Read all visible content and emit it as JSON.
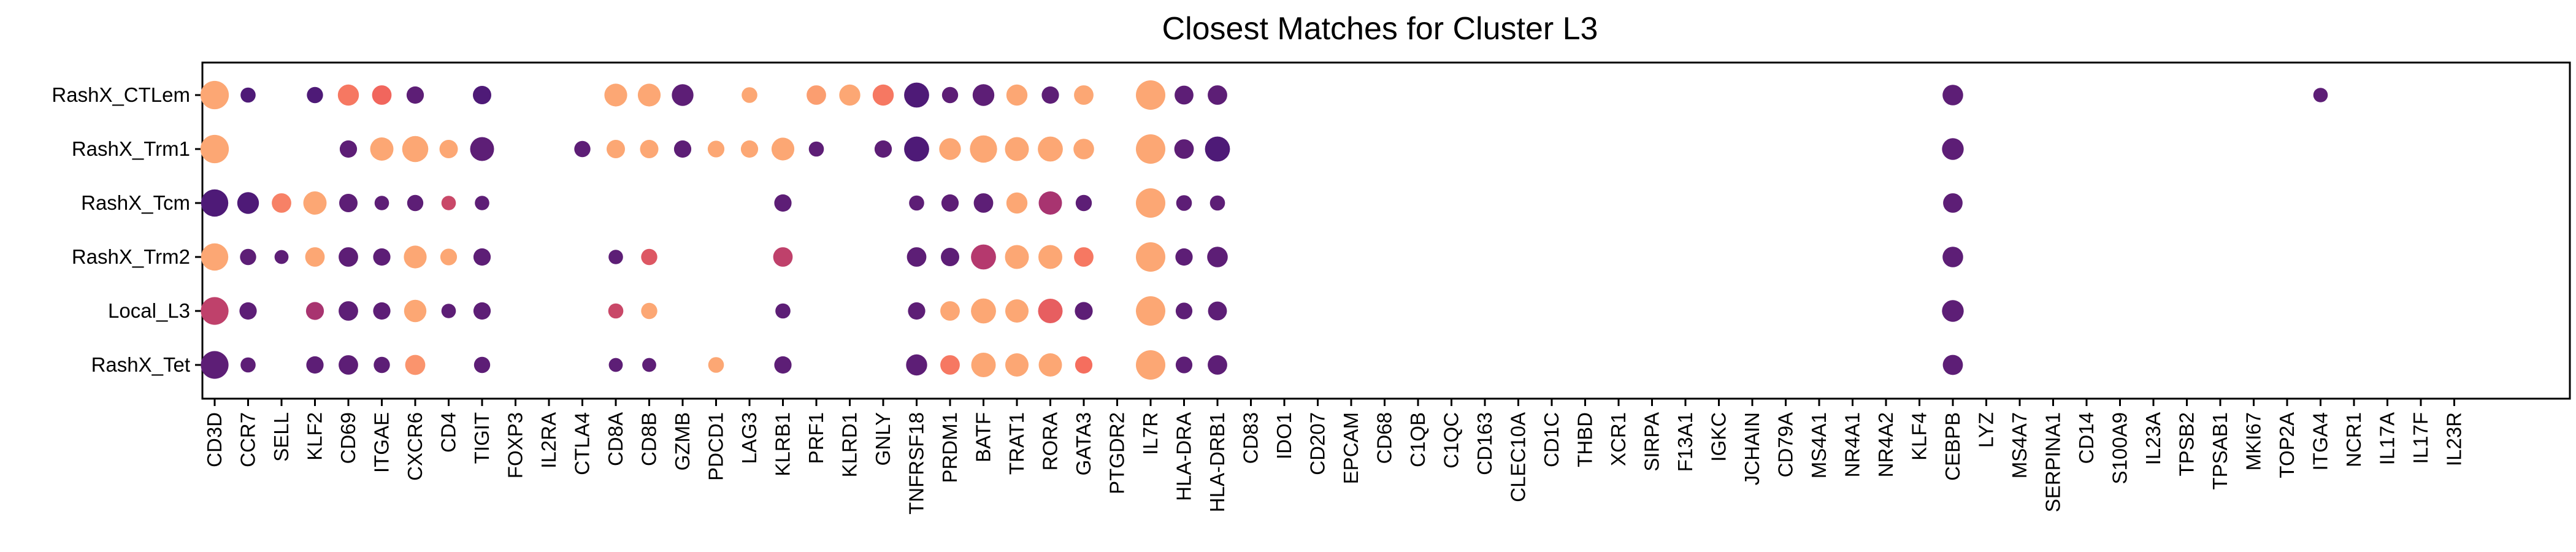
{
  "chart_data": {
    "type": "scatter",
    "title": "Closest Matches for Cluster L3",
    "xlabel": "",
    "ylabel": "",
    "grid": false,
    "legend": "none",
    "rows": [
      "RashX_CTLem",
      "RashX_Trm1",
      "RashX_Tcm",
      "RashX_Trm2",
      "Local_L3",
      "RashX_Tet"
    ],
    "genes": [
      "CD3D",
      "CCR7",
      "SELL",
      "KLF2",
      "CD69",
      "ITGAE",
      "CXCR6",
      "CD4",
      "TIGIT",
      "FOXP3",
      "IL2RA",
      "CTLA4",
      "CD8A",
      "CD8B",
      "GZMB",
      "PDCD1",
      "LAG3",
      "KLRB1",
      "PRF1",
      "KLRD1",
      "GNLY",
      "TNFRSF18",
      "PRDM1",
      "BATF",
      "TRAT1",
      "RORA",
      "GATA3",
      "PTGDR2",
      "IL7R",
      "HLA-DRA",
      "HLA-DRB1",
      "CD83",
      "IDO1",
      "CD207",
      "EPCAM",
      "CD68",
      "C1QB",
      "C1QC",
      "CD163",
      "CLEC10A",
      "CD1C",
      "THBD",
      "XCR1",
      "SIRPA",
      "F13A1",
      "IGKC",
      "JCHAIN",
      "CD79A",
      "MS4A1",
      "NR4A1",
      "NR4A2",
      "KLF4",
      "CEBPB",
      "LYZ",
      "MS4A7",
      "SERPINA1",
      "CD14",
      "S100A9",
      "IL23A",
      "TPSB2",
      "TPSAB1",
      "MKI67",
      "TOP2A",
      "ITGA4",
      "NCR1",
      "IL17A",
      "IL17F",
      "IL23R"
    ],
    "color_scale": {
      "low": "#4e1a77",
      "mid": "#b2376f",
      "high": "#f4685c",
      "max": "#fca774"
    },
    "points": [
      {
        "row": 0,
        "gene": 0,
        "size": 0.95,
        "color": 1.0
      },
      {
        "row": 0,
        "gene": 1,
        "size": 0.35,
        "color": 0.0
      },
      {
        "row": 0,
        "gene": 3,
        "size": 0.4,
        "color": 0.0
      },
      {
        "row": 0,
        "gene": 4,
        "size": 0.62,
        "color": 0.75
      },
      {
        "row": 0,
        "gene": 5,
        "size": 0.55,
        "color": 0.65
      },
      {
        "row": 0,
        "gene": 6,
        "size": 0.45,
        "color": 0.05
      },
      {
        "row": 0,
        "gene": 8,
        "size": 0.5,
        "color": 0.0
      },
      {
        "row": 0,
        "gene": 12,
        "size": 0.7,
        "color": 1.0
      },
      {
        "row": 0,
        "gene": 13,
        "size": 0.7,
        "color": 1.0
      },
      {
        "row": 0,
        "gene": 14,
        "size": 0.65,
        "color": 0.05
      },
      {
        "row": 0,
        "gene": 16,
        "size": 0.38,
        "color": 1.0
      },
      {
        "row": 0,
        "gene": 18,
        "size": 0.55,
        "color": 0.95
      },
      {
        "row": 0,
        "gene": 19,
        "size": 0.62,
        "color": 1.0
      },
      {
        "row": 0,
        "gene": 20,
        "size": 0.62,
        "color": 0.75
      },
      {
        "row": 0,
        "gene": 21,
        "size": 0.8,
        "color": 0.0
      },
      {
        "row": 0,
        "gene": 22,
        "size": 0.4,
        "color": 0.05
      },
      {
        "row": 0,
        "gene": 23,
        "size": 0.65,
        "color": 0.05
      },
      {
        "row": 0,
        "gene": 24,
        "size": 0.62,
        "color": 1.0
      },
      {
        "row": 0,
        "gene": 25,
        "size": 0.45,
        "color": 0.05
      },
      {
        "row": 0,
        "gene": 26,
        "size": 0.55,
        "color": 1.0
      },
      {
        "row": 0,
        "gene": 28,
        "size": 1.0,
        "color": 1.0
      },
      {
        "row": 0,
        "gene": 29,
        "size": 0.52,
        "color": 0.05
      },
      {
        "row": 0,
        "gene": 30,
        "size": 0.55,
        "color": 0.05
      },
      {
        "row": 0,
        "gene": 52,
        "size": 0.6,
        "color": 0.05
      },
      {
        "row": 0,
        "gene": 63,
        "size": 0.32,
        "color": 0.05
      },
      {
        "row": 1,
        "gene": 0,
        "size": 0.95,
        "color": 1.0
      },
      {
        "row": 1,
        "gene": 4,
        "size": 0.45,
        "color": 0.05
      },
      {
        "row": 1,
        "gene": 5,
        "size": 0.72,
        "color": 1.0
      },
      {
        "row": 1,
        "gene": 6,
        "size": 0.85,
        "color": 1.0
      },
      {
        "row": 1,
        "gene": 7,
        "size": 0.5,
        "color": 1.0
      },
      {
        "row": 1,
        "gene": 8,
        "size": 0.75,
        "color": 0.05
      },
      {
        "row": 1,
        "gene": 11,
        "size": 0.4,
        "color": 0.05
      },
      {
        "row": 1,
        "gene": 12,
        "size": 0.5,
        "color": 1.0
      },
      {
        "row": 1,
        "gene": 13,
        "size": 0.5,
        "color": 1.0
      },
      {
        "row": 1,
        "gene": 14,
        "size": 0.45,
        "color": 0.05
      },
      {
        "row": 1,
        "gene": 15,
        "size": 0.42,
        "color": 1.0
      },
      {
        "row": 1,
        "gene": 16,
        "size": 0.45,
        "color": 1.0
      },
      {
        "row": 1,
        "gene": 17,
        "size": 0.7,
        "color": 1.0
      },
      {
        "row": 1,
        "gene": 18,
        "size": 0.35,
        "color": 0.05
      },
      {
        "row": 1,
        "gene": 20,
        "size": 0.45,
        "color": 0.05
      },
      {
        "row": 1,
        "gene": 21,
        "size": 0.8,
        "color": 0.0
      },
      {
        "row": 1,
        "gene": 22,
        "size": 0.65,
        "color": 1.0
      },
      {
        "row": 1,
        "gene": 23,
        "size": 0.9,
        "color": 1.0
      },
      {
        "row": 1,
        "gene": 24,
        "size": 0.75,
        "color": 1.0
      },
      {
        "row": 1,
        "gene": 25,
        "size": 0.8,
        "color": 1.0
      },
      {
        "row": 1,
        "gene": 26,
        "size": 0.6,
        "color": 1.0
      },
      {
        "row": 1,
        "gene": 28,
        "size": 1.0,
        "color": 1.0
      },
      {
        "row": 1,
        "gene": 29,
        "size": 0.55,
        "color": 0.05
      },
      {
        "row": 1,
        "gene": 30,
        "size": 0.8,
        "color": 0.0
      },
      {
        "row": 1,
        "gene": 52,
        "size": 0.65,
        "color": 0.05
      },
      {
        "row": 2,
        "gene": 0,
        "size": 0.9,
        "color": 0.0
      },
      {
        "row": 2,
        "gene": 1,
        "size": 0.65,
        "color": 0.0
      },
      {
        "row": 2,
        "gene": 2,
        "size": 0.55,
        "color": 0.8
      },
      {
        "row": 2,
        "gene": 3,
        "size": 0.72,
        "color": 1.0
      },
      {
        "row": 2,
        "gene": 4,
        "size": 0.5,
        "color": 0.05
      },
      {
        "row": 2,
        "gene": 5,
        "size": 0.32,
        "color": 0.05
      },
      {
        "row": 2,
        "gene": 6,
        "size": 0.4,
        "color": 0.05
      },
      {
        "row": 2,
        "gene": 7,
        "size": 0.32,
        "color": 0.45
      },
      {
        "row": 2,
        "gene": 8,
        "size": 0.32,
        "color": 0.05
      },
      {
        "row": 2,
        "gene": 17,
        "size": 0.45,
        "color": 0.05
      },
      {
        "row": 2,
        "gene": 21,
        "size": 0.35,
        "color": 0.05
      },
      {
        "row": 2,
        "gene": 22,
        "size": 0.45,
        "color": 0.05
      },
      {
        "row": 2,
        "gene": 23,
        "size": 0.55,
        "color": 0.05
      },
      {
        "row": 2,
        "gene": 24,
        "size": 0.62,
        "color": 1.0
      },
      {
        "row": 2,
        "gene": 25,
        "size": 0.72,
        "color": 0.3
      },
      {
        "row": 2,
        "gene": 26,
        "size": 0.4,
        "color": 0.05
      },
      {
        "row": 2,
        "gene": 28,
        "size": 1.0,
        "color": 1.0
      },
      {
        "row": 2,
        "gene": 29,
        "size": 0.38,
        "color": 0.05
      },
      {
        "row": 2,
        "gene": 30,
        "size": 0.35,
        "color": 0.05
      },
      {
        "row": 2,
        "gene": 52,
        "size": 0.55,
        "color": 0.05
      },
      {
        "row": 3,
        "gene": 0,
        "size": 0.9,
        "color": 1.0
      },
      {
        "row": 3,
        "gene": 1,
        "size": 0.4,
        "color": 0.05
      },
      {
        "row": 3,
        "gene": 2,
        "size": 0.3,
        "color": 0.05
      },
      {
        "row": 3,
        "gene": 3,
        "size": 0.55,
        "color": 1.0
      },
      {
        "row": 3,
        "gene": 4,
        "size": 0.55,
        "color": 0.05
      },
      {
        "row": 3,
        "gene": 5,
        "size": 0.45,
        "color": 0.05
      },
      {
        "row": 3,
        "gene": 6,
        "size": 0.7,
        "color": 1.0
      },
      {
        "row": 3,
        "gene": 7,
        "size": 0.42,
        "color": 1.0
      },
      {
        "row": 3,
        "gene": 8,
        "size": 0.45,
        "color": 0.05
      },
      {
        "row": 3,
        "gene": 12,
        "size": 0.32,
        "color": 0.05
      },
      {
        "row": 3,
        "gene": 13,
        "size": 0.4,
        "color": 0.55
      },
      {
        "row": 3,
        "gene": 17,
        "size": 0.55,
        "color": 0.4
      },
      {
        "row": 3,
        "gene": 21,
        "size": 0.55,
        "color": 0.05
      },
      {
        "row": 3,
        "gene": 22,
        "size": 0.5,
        "color": 0.05
      },
      {
        "row": 3,
        "gene": 23,
        "size": 0.8,
        "color": 0.35
      },
      {
        "row": 3,
        "gene": 24,
        "size": 0.75,
        "color": 1.0
      },
      {
        "row": 3,
        "gene": 25,
        "size": 0.75,
        "color": 1.0
      },
      {
        "row": 3,
        "gene": 26,
        "size": 0.55,
        "color": 0.75
      },
      {
        "row": 3,
        "gene": 28,
        "size": 1.0,
        "color": 1.0
      },
      {
        "row": 3,
        "gene": 29,
        "size": 0.45,
        "color": 0.05
      },
      {
        "row": 3,
        "gene": 30,
        "size": 0.6,
        "color": 0.05
      },
      {
        "row": 3,
        "gene": 52,
        "size": 0.6,
        "color": 0.05
      },
      {
        "row": 4,
        "gene": 0,
        "size": 0.92,
        "color": 0.4
      },
      {
        "row": 4,
        "gene": 1,
        "size": 0.45,
        "color": 0.05
      },
      {
        "row": 4,
        "gene": 3,
        "size": 0.48,
        "color": 0.3
      },
      {
        "row": 4,
        "gene": 4,
        "size": 0.55,
        "color": 0.05
      },
      {
        "row": 4,
        "gene": 5,
        "size": 0.45,
        "color": 0.05
      },
      {
        "row": 4,
        "gene": 6,
        "size": 0.68,
        "color": 1.0
      },
      {
        "row": 4,
        "gene": 7,
        "size": 0.32,
        "color": 0.05
      },
      {
        "row": 4,
        "gene": 8,
        "size": 0.45,
        "color": 0.05
      },
      {
        "row": 4,
        "gene": 12,
        "size": 0.35,
        "color": 0.45
      },
      {
        "row": 4,
        "gene": 13,
        "size": 0.4,
        "color": 1.0
      },
      {
        "row": 4,
        "gene": 17,
        "size": 0.35,
        "color": 0.05
      },
      {
        "row": 4,
        "gene": 21,
        "size": 0.45,
        "color": 0.05
      },
      {
        "row": 4,
        "gene": 22,
        "size": 0.55,
        "color": 1.0
      },
      {
        "row": 4,
        "gene": 23,
        "size": 0.8,
        "color": 1.0
      },
      {
        "row": 4,
        "gene": 24,
        "size": 0.72,
        "color": 1.0
      },
      {
        "row": 4,
        "gene": 25,
        "size": 0.78,
        "color": 0.6
      },
      {
        "row": 4,
        "gene": 26,
        "size": 0.48,
        "color": 0.05
      },
      {
        "row": 4,
        "gene": 28,
        "size": 1.0,
        "color": 1.0
      },
      {
        "row": 4,
        "gene": 29,
        "size": 0.42,
        "color": 0.05
      },
      {
        "row": 4,
        "gene": 30,
        "size": 0.52,
        "color": 0.05
      },
      {
        "row": 4,
        "gene": 52,
        "size": 0.65,
        "color": 0.05
      },
      {
        "row": 5,
        "gene": 0,
        "size": 0.92,
        "color": 0.05
      },
      {
        "row": 5,
        "gene": 1,
        "size": 0.35,
        "color": 0.05
      },
      {
        "row": 5,
        "gene": 3,
        "size": 0.45,
        "color": 0.05
      },
      {
        "row": 5,
        "gene": 4,
        "size": 0.55,
        "color": 0.05
      },
      {
        "row": 5,
        "gene": 5,
        "size": 0.4,
        "color": 0.05
      },
      {
        "row": 5,
        "gene": 6,
        "size": 0.58,
        "color": 0.9
      },
      {
        "row": 5,
        "gene": 8,
        "size": 0.4,
        "color": 0.05
      },
      {
        "row": 5,
        "gene": 12,
        "size": 0.3,
        "color": 0.05
      },
      {
        "row": 5,
        "gene": 13,
        "size": 0.3,
        "color": 0.05
      },
      {
        "row": 5,
        "gene": 15,
        "size": 0.38,
        "color": 1.0
      },
      {
        "row": 5,
        "gene": 17,
        "size": 0.45,
        "color": 0.05
      },
      {
        "row": 5,
        "gene": 21,
        "size": 0.62,
        "color": 0.05
      },
      {
        "row": 5,
        "gene": 22,
        "size": 0.55,
        "color": 0.75
      },
      {
        "row": 5,
        "gene": 23,
        "size": 0.78,
        "color": 1.0
      },
      {
        "row": 5,
        "gene": 24,
        "size": 0.72,
        "color": 1.0
      },
      {
        "row": 5,
        "gene": 25,
        "size": 0.72,
        "color": 1.0
      },
      {
        "row": 5,
        "gene": 26,
        "size": 0.45,
        "color": 0.7
      },
      {
        "row": 5,
        "gene": 28,
        "size": 1.0,
        "color": 1.0
      },
      {
        "row": 5,
        "gene": 29,
        "size": 0.42,
        "color": 0.05
      },
      {
        "row": 5,
        "gene": 30,
        "size": 0.55,
        "color": 0.05
      },
      {
        "row": 5,
        "gene": 52,
        "size": 0.58,
        "color": 0.05
      }
    ]
  }
}
